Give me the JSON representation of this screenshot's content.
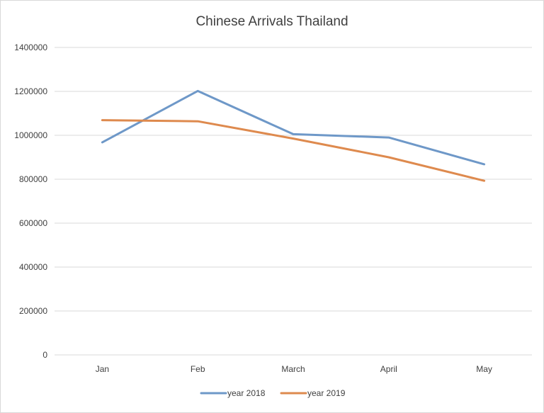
{
  "chart_data": {
    "type": "line",
    "title": "Chinese Arrivals Thailand",
    "xlabel": "",
    "ylabel": "",
    "categories": [
      "Jan",
      "Feb",
      "March",
      "April",
      "May"
    ],
    "y_ticks": [
      0,
      200000,
      400000,
      600000,
      800000,
      1000000,
      1200000,
      1400000
    ],
    "ylim": [
      0,
      1400000
    ],
    "grid": true,
    "legend_position": "bottom",
    "series": [
      {
        "name": "year 2018",
        "color": "#6e98c8",
        "values": [
          968000,
          1202000,
          1005000,
          990000,
          868000
        ]
      },
      {
        "name": "year 2019",
        "color": "#de8a4e",
        "values": [
          1069000,
          1064000,
          985000,
          900000,
          793000
        ]
      }
    ]
  }
}
